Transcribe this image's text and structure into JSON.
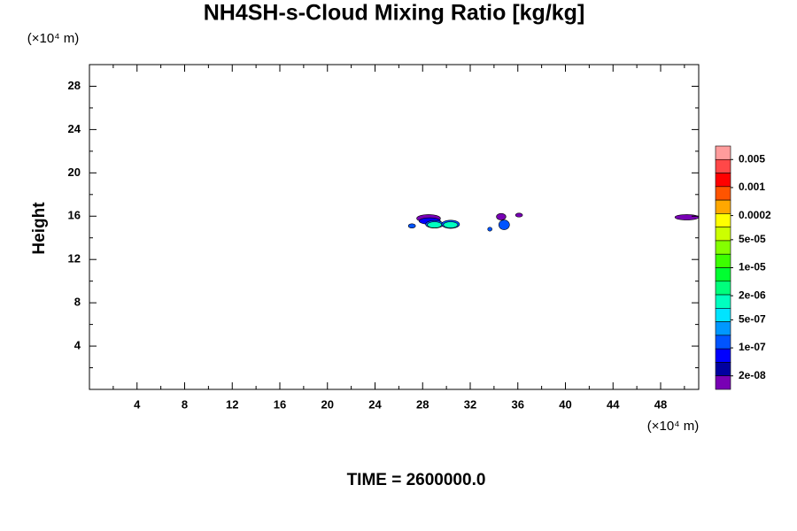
{
  "chart_data": {
    "type": "contour",
    "title": "NH4SH-s-Cloud Mixing Ratio [kg/kg]",
    "ylabel": "Height",
    "xunit": "(×10⁴ m)",
    "yunit": "(×10⁴ m)",
    "footer": "TIME = 2600000.0",
    "xlim": [
      0,
      51.2
    ],
    "ylim": [
      0,
      30
    ],
    "xticks": [
      4,
      8,
      12,
      16,
      20,
      24,
      28,
      32,
      36,
      40,
      44,
      48
    ],
    "yticks": [
      4,
      8,
      12,
      16,
      20,
      24,
      28
    ],
    "xminor": [
      2,
      6,
      10,
      14,
      18,
      22,
      26,
      30,
      34,
      38,
      42,
      46,
      50
    ],
    "yminor": [
      2,
      6,
      10,
      14,
      18,
      22,
      26
    ],
    "colorbar": {
      "colors": [
        "#ff9c9c",
        "#ff4848",
        "#ff0000",
        "#ff5400",
        "#ffa800",
        "#ffff00",
        "#ccff00",
        "#84ff00",
        "#3cff00",
        "#00ff30",
        "#00ff7c",
        "#00ffc0",
        "#00e4ff",
        "#0098ff",
        "#0054ff",
        "#0000ff",
        "#0000a0",
        "#7800b4"
      ],
      "ticks": [
        0.005,
        0.001,
        0.0002,
        {
          "value": 5e-05,
          "label": "5e-05"
        },
        {
          "value": 1e-05,
          "label": "1e-05"
        },
        {
          "value": 2e-06,
          "label": "2e-06"
        },
        {
          "value": 5e-07,
          "label": "5e-07"
        },
        {
          "value": 1e-07,
          "label": "1e-07"
        },
        {
          "value": 2e-08,
          "label": "2e-08"
        }
      ]
    },
    "regions": [
      {
        "color": "#7800b4",
        "cx": 28.5,
        "cy": 15.8,
        "rx": 1.0,
        "ry": 0.35
      },
      {
        "color": "#0000ff",
        "cx": 28.6,
        "cy": 15.55,
        "rx": 0.9,
        "ry": 0.3
      },
      {
        "color": "#0054ff",
        "cx": 29.0,
        "cy": 15.25,
        "rx": 0.75,
        "ry": 0.35
      },
      {
        "color": "#00ffc0",
        "cx": 29.0,
        "cy": 15.2,
        "rx": 0.6,
        "ry": 0.28
      },
      {
        "color": "#0054ff",
        "cx": 30.35,
        "cy": 15.25,
        "rx": 0.75,
        "ry": 0.38
      },
      {
        "color": "#00ffc0",
        "cx": 30.35,
        "cy": 15.2,
        "rx": 0.6,
        "ry": 0.28
      },
      {
        "color": "#0054ff",
        "cx": 27.1,
        "cy": 15.1,
        "rx": 0.3,
        "ry": 0.2
      },
      {
        "color": "#7800b4",
        "cx": 34.6,
        "cy": 15.95,
        "rx": 0.4,
        "ry": 0.3
      },
      {
        "color": "#0054ff",
        "cx": 34.85,
        "cy": 15.2,
        "rx": 0.45,
        "ry": 0.45
      },
      {
        "color": "#7800b4",
        "cx": 36.1,
        "cy": 16.1,
        "rx": 0.3,
        "ry": 0.18
      },
      {
        "color": "#0054ff",
        "cx": 33.65,
        "cy": 14.8,
        "rx": 0.18,
        "ry": 0.18
      },
      {
        "color": "#7800b4",
        "cx": 50.2,
        "cy": 15.9,
        "rx": 1.0,
        "ry": 0.25
      }
    ]
  }
}
